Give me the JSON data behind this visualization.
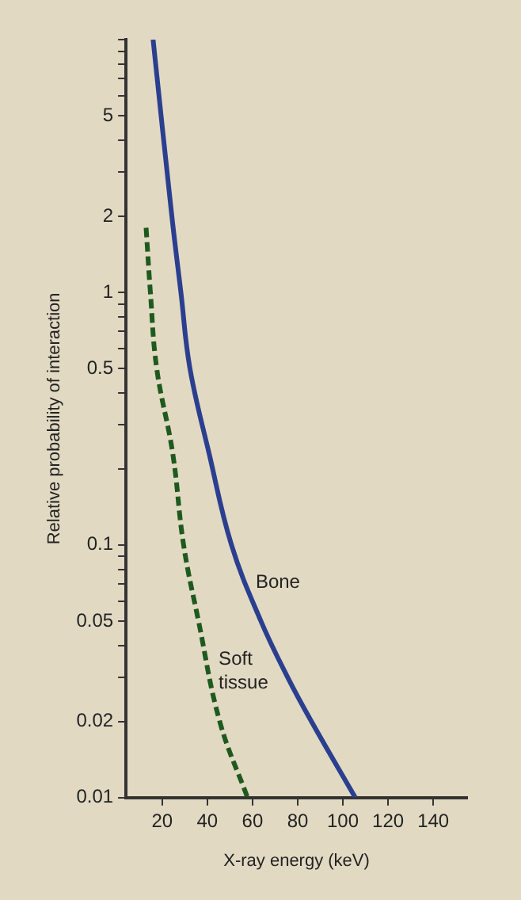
{
  "chart_data": {
    "type": "line",
    "xlabel": "X-ray energy (keV)",
    "ylabel": "Relative probability of interaction",
    "log": "y",
    "grid": false,
    "legend": false,
    "marker": "none",
    "xlim": [
      4,
      155
    ],
    "xticks": [
      20,
      40,
      60,
      80,
      100,
      120,
      140
    ],
    "ylim": [
      0.01,
      10
    ],
    "yticks": [
      0.01,
      0.02,
      {
        "value": 0.03,
        "label": null
      },
      {
        "value": 0.04,
        "label": null
      },
      0.05,
      {
        "value": 0.06,
        "label": null
      },
      {
        "value": 0.07,
        "label": null
      },
      {
        "value": 0.08,
        "label": null
      },
      {
        "value": 0.09,
        "label": null
      },
      0.1,
      {
        "value": 0.2,
        "label": null
      },
      {
        "value": 0.3,
        "label": null
      },
      {
        "value": 0.4,
        "label": null
      },
      0.5,
      {
        "value": 0.6,
        "label": null
      },
      {
        "value": 0.7,
        "label": null
      },
      {
        "value": 0.8,
        "label": null
      },
      {
        "value": 0.9,
        "label": null
      },
      1,
      2,
      {
        "value": 3,
        "label": null
      },
      {
        "value": 4,
        "label": null
      },
      5,
      {
        "value": 6,
        "label": null
      },
      {
        "value": 7,
        "label": null
      },
      {
        "value": 8,
        "label": null
      },
      {
        "value": 9,
        "label": null
      },
      {
        "value": 10,
        "label": null
      }
    ],
    "series": [
      {
        "name": "Bone",
        "color": "#2b3f8f",
        "line_style": "solid",
        "x": [
          16,
          24.3,
          28.3,
          32.3,
          40.8,
          50.7,
          63.7,
          75.5,
          86.1,
          105.5
        ],
        "values": [
          10,
          2,
          1,
          0.5,
          0.23,
          0.1,
          0.05,
          0.03,
          0.02,
          0.01
        ]
      },
      {
        "name": "Soft tissue",
        "color": "#1e5a1e",
        "line_style": "dashed",
        "x": [
          12.9,
          14.8,
          17.6,
          24.7,
          29.5,
          36.1,
          45.5,
          57.8
        ],
        "values": [
          1.8,
          1,
          0.5,
          0.23,
          0.1,
          0.05,
          0.02,
          0.01
        ]
      }
    ]
  }
}
